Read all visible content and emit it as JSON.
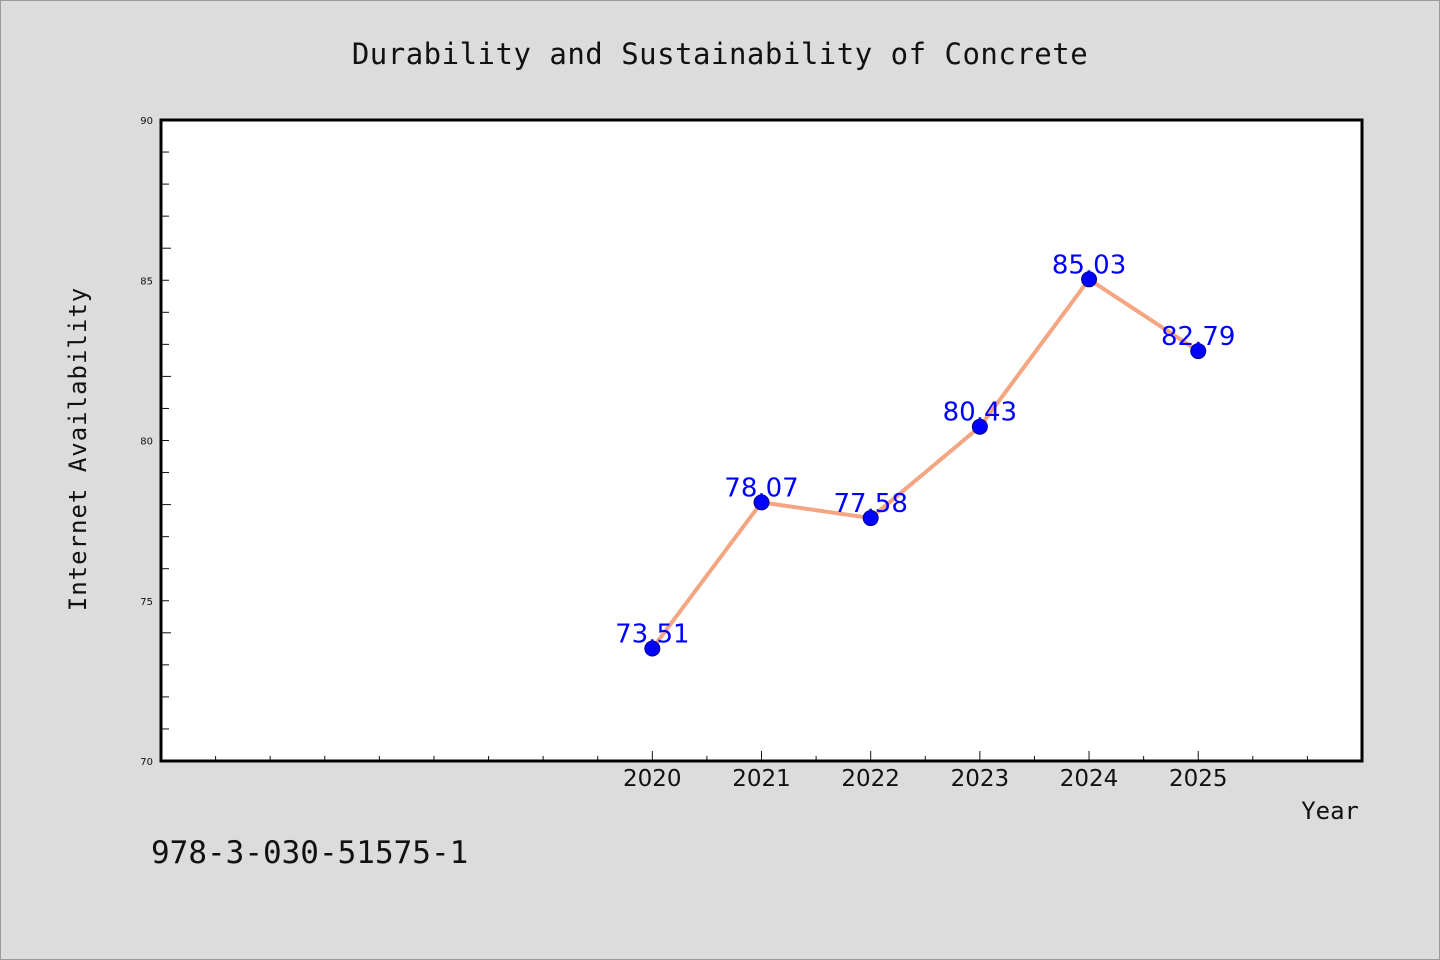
{
  "chart_data": {
    "type": "line",
    "title": "Durability and Sustainability of Concrete",
    "xlabel": "Year",
    "ylabel": "Internet Availability",
    "x": [
      "2020",
      "2021",
      "2022",
      "2023",
      "2024",
      "2025"
    ],
    "x_numeric": [
      2020,
      2021,
      2022,
      2023,
      2024,
      2025
    ],
    "xlim": [
      2015.5,
      2026.5
    ],
    "ylim": [
      70,
      90
    ],
    "yticks": [
      "70",
      "75",
      "80",
      "85",
      "90"
    ],
    "series": [
      {
        "values": [
          73.51,
          78.07,
          77.58,
          80.43,
          85.03,
          82.79
        ],
        "labels": [
          "73.51",
          "78.07",
          "77.58",
          "80.43",
          "85.03",
          "82.79"
        ],
        "line_color": "#f4a582",
        "marker_color": "#0000ff"
      }
    ],
    "grid": false,
    "legend": "none"
  },
  "footer": {
    "isbn": "978-3-030-51575-1"
  }
}
